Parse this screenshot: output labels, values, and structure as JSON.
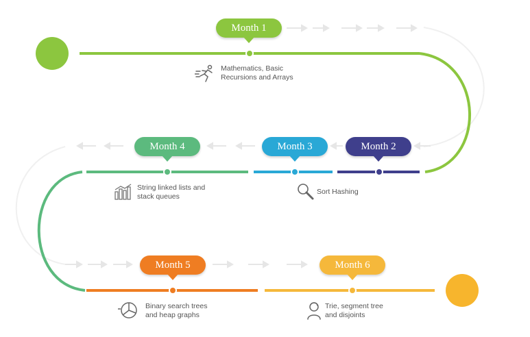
{
  "colors": {
    "month1": "#8cc63f",
    "month2": "#3f3f8c",
    "month3": "#29a8d6",
    "month4": "#5cba7e",
    "month5": "#ef7d22",
    "month6": "#f5b83b",
    "start_circle": "#8cc63f",
    "end_circle": "#f7b52d",
    "arrows": "#e6e6e6"
  },
  "milestones": [
    {
      "label": "Month 1",
      "topic": "Mathematics, Basic\nRecursions and Arrays",
      "icon": "running-person-icon"
    },
    {
      "label": "Month 2",
      "topic": "",
      "icon": ""
    },
    {
      "label": "Month 3",
      "topic": "Sort Hashing",
      "icon": "magnifier-icon"
    },
    {
      "label": "Month 4",
      "topic": "String linked lists and\nstack queues",
      "icon": "bar-chart-icon"
    },
    {
      "label": "Month 5",
      "topic": "Binary search trees\nand heap graphs",
      "icon": "pie-chart-icon"
    },
    {
      "label": "Month 6",
      "topic": "Trie, segment tree\nand disjoints",
      "icon": "person-icon"
    }
  ]
}
